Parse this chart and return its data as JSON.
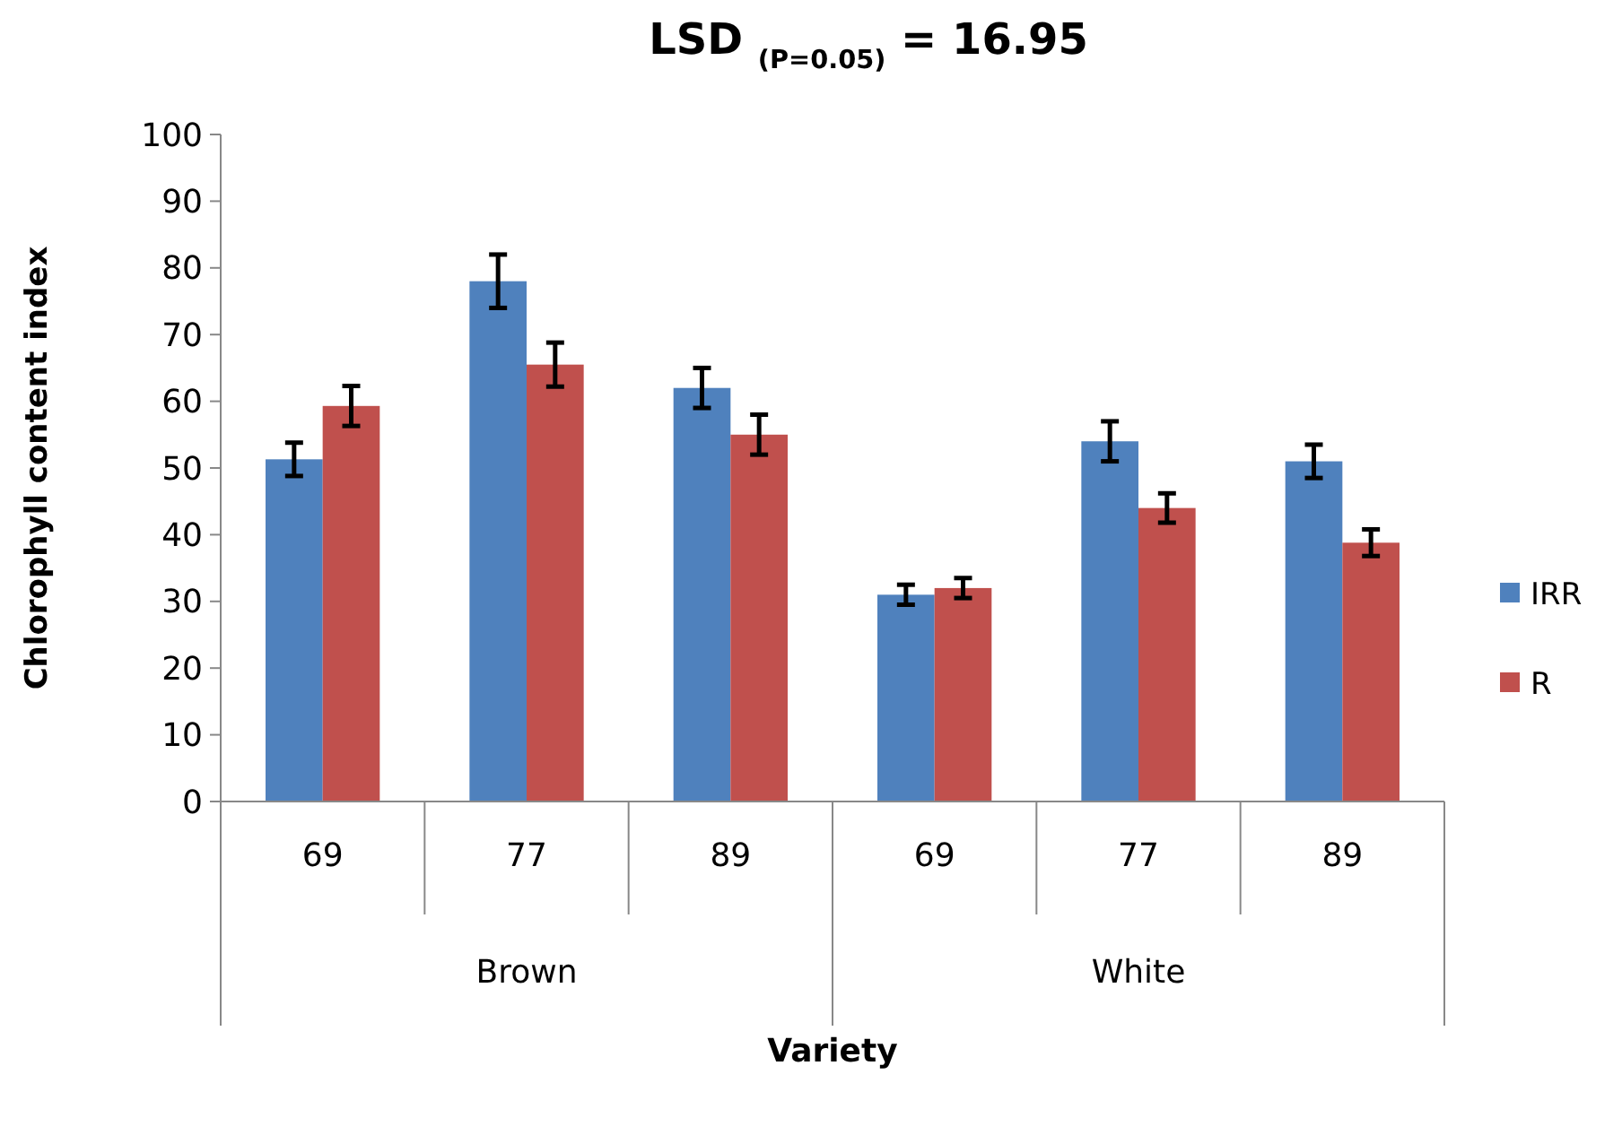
{
  "chart_data": {
    "type": "bar",
    "title": "LSD $_{(P=0.05)}$ = 16.95",
    "xlabel": "Variety",
    "ylabel": "Chlorophyll content index",
    "categories": [
      "69",
      "77",
      "89",
      "69",
      "77",
      "89"
    ],
    "annotations": [
      "Brown",
      "White"
    ],
    "series": [
      {
        "name": "IRR",
        "color": "#4f81bd",
        "values": [
          51.3,
          78,
          62,
          31,
          54,
          51
        ],
        "errors": [
          2.5,
          4,
          3,
          1.5,
          3,
          2.5
        ]
      },
      {
        "name": "R",
        "color": "#c0504d",
        "values": [
          59.3,
          65.5,
          55,
          32,
          44,
          38.8
        ],
        "errors": [
          3,
          3.3,
          3,
          1.5,
          2.2,
          2
        ]
      }
    ],
    "ylim": [
      0,
      100
    ],
    "yticks": [
      0,
      10,
      20,
      30,
      40,
      50,
      60,
      70,
      80,
      90,
      100
    ],
    "grid": false,
    "legend": "right"
  }
}
